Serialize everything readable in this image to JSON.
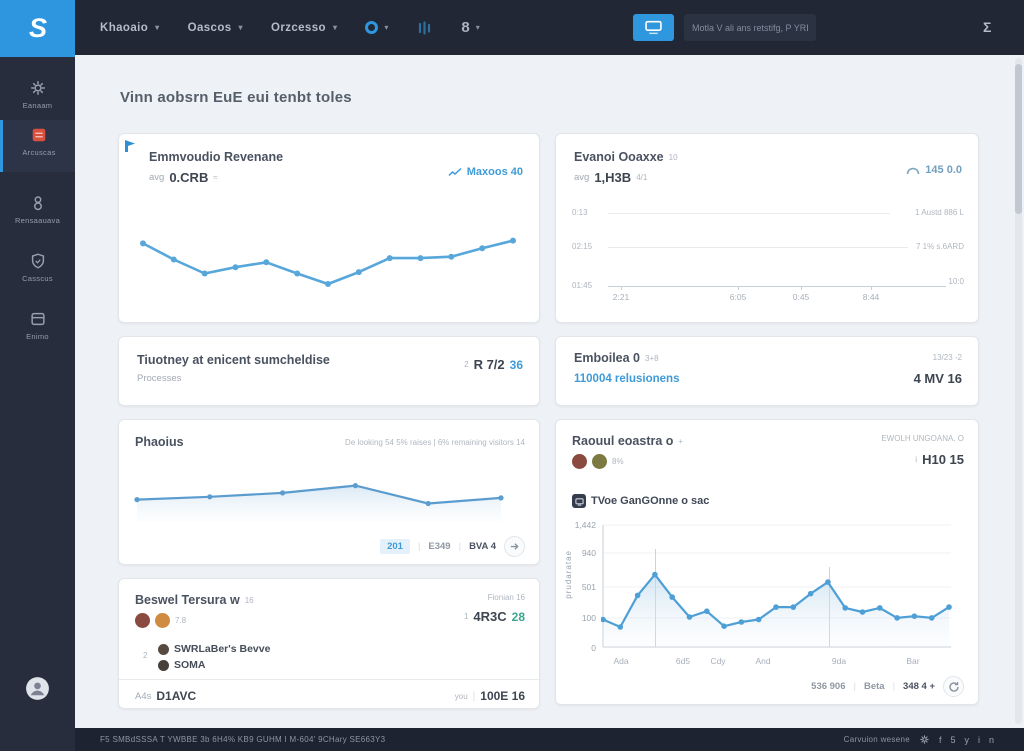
{
  "app": {
    "logo_text": "S"
  },
  "topnav": {
    "menus": [
      {
        "label": "Khaoaio"
      },
      {
        "label": "Oascos"
      },
      {
        "label": "Orzcesso"
      }
    ],
    "user_count": "8",
    "search_placeholder": "Motla V ali ans retstifg, P YRBties"
  },
  "sidebar": {
    "items": [
      {
        "label": "Eanaam"
      },
      {
        "label": "Arcuscas"
      },
      {
        "label": "Rensaauava"
      },
      {
        "label": "Casscus"
      },
      {
        "label": "Enimo"
      }
    ]
  },
  "page": {
    "title": "Vinn aobsrn EuE eui tenbt toles"
  },
  "cards": {
    "card1": {
      "title": "Emmvoudio Revenane",
      "avg_label": "avg",
      "value": "0.CRB",
      "value_note": "≈",
      "link": "Maxoos 40"
    },
    "card2": {
      "title": "Evanoi Ooaxxe",
      "title_note": "10",
      "avg_label": "avg",
      "value": "1,H3B",
      "value_note": "4/1",
      "link": "145 0.0",
      "rows": [
        {
          "left": "0:13",
          "right": "1 Austd 886 L"
        },
        {
          "left": "02:15",
          "right": "7 1% s.6ARD"
        },
        {
          "left": "01:45",
          "right": ""
        }
      ],
      "end_label": "10:0",
      "ticks": [
        "2:21",
        "6:05",
        "0:45",
        "8:44"
      ]
    },
    "card3": {
      "title": "Tiuotney at enicent sumcheldise",
      "subtitle": "Processes",
      "value_small": "2",
      "value": "R 7/2",
      "value_accent": "36"
    },
    "card4": {
      "title": "Emboilea 0",
      "title_note": "3+8",
      "link": "110004 relusionens",
      "meta": "13/23 -2",
      "value": "4 MV 16"
    },
    "card5": {
      "title": "Phaoius",
      "note": "De looking 54 5% raises  |  6% remaining visitors 14",
      "pag_active": "201",
      "pag_item1": "E349",
      "pag_item2": "BVA 4"
    },
    "card6": {
      "title": "Beswel Tersura w",
      "title_note": "16",
      "avatars_note": "7.8",
      "meta": "Fionian 16",
      "value_small": "1",
      "value": "4R3C",
      "value_accent": "28",
      "legend_note": "2",
      "legend": [
        "SWRLaBer's Bevve",
        "SOMA"
      ],
      "footer_label": "A4s",
      "footer_value": "D1AVC",
      "footer_meta": "you",
      "footer_total": "100E 16"
    },
    "card7": {
      "title": "Raouul eoastra o",
      "title_note": "+",
      "avatars_note": "8%",
      "meta": "EWOLH UNGOANA. O",
      "value_small": "i",
      "value": "H10 15",
      "section": "TVoe GanGOnne o sac",
      "pag_item1": "536 906",
      "pag_item2": "Beta",
      "pag_item3": "348 4 +"
    }
  },
  "footer": {
    "left": "F5 SMBdSSSA T YWBBE 3b 6H4% KB9 GUHM I M-604' 9CHary SE663Y3",
    "right": "Carvuion wesene",
    "social": [
      "f",
      "5",
      "y",
      "i",
      "n"
    ]
  },
  "chart_data": [
    {
      "id": "card1-line",
      "type": "line",
      "title": "Emmvoudio Revenane",
      "values": [
        78,
        55,
        35,
        44,
        51,
        35,
        20,
        37,
        57,
        57,
        59,
        71,
        82
      ],
      "ylim": [
        0,
        100
      ],
      "xlabel": "",
      "ylabel": "",
      "grid": false,
      "legend": "none",
      "color": "#57a7da",
      "stroke_width": 2.6,
      "dot": 3,
      "inset": [
        14,
        14,
        16,
        12
      ]
    },
    {
      "id": "card5-area",
      "type": "area",
      "title": "Phaoius",
      "values": [
        40,
        45,
        52,
        65,
        33,
        43
      ],
      "ylim": [
        0,
        100
      ],
      "xlabel": "",
      "ylabel": "",
      "grid": false,
      "legend": "none",
      "color": "#5b9ccf",
      "stroke_width": 2.2,
      "dot": 2.6,
      "inset": [
        10,
        10,
        8,
        8
      ]
    },
    {
      "id": "card7-area",
      "type": "area",
      "title": "TVoe GanGOnne o sac",
      "values": [
        330,
        240,
        620,
        870,
        600,
        360,
        430,
        250,
        300,
        330,
        480,
        480,
        640,
        780,
        470,
        420,
        470,
        350,
        370,
        350,
        480
      ],
      "ylim": [
        0,
        1442
      ],
      "yticks": [
        "1,442",
        "940",
        "501",
        "100",
        "0"
      ],
      "xticks": [
        "Ada",
        "6d5",
        "Cdy",
        "And",
        "9da",
        "Bar"
      ],
      "ylabel": "prudaratae",
      "xlabel": "",
      "grid": true,
      "legend": "none",
      "color": "#4d9fd6",
      "stroke_width": 2.2,
      "dot": 2.8,
      "inset": [
        8,
        10,
        4,
        2
      ]
    }
  ]
}
